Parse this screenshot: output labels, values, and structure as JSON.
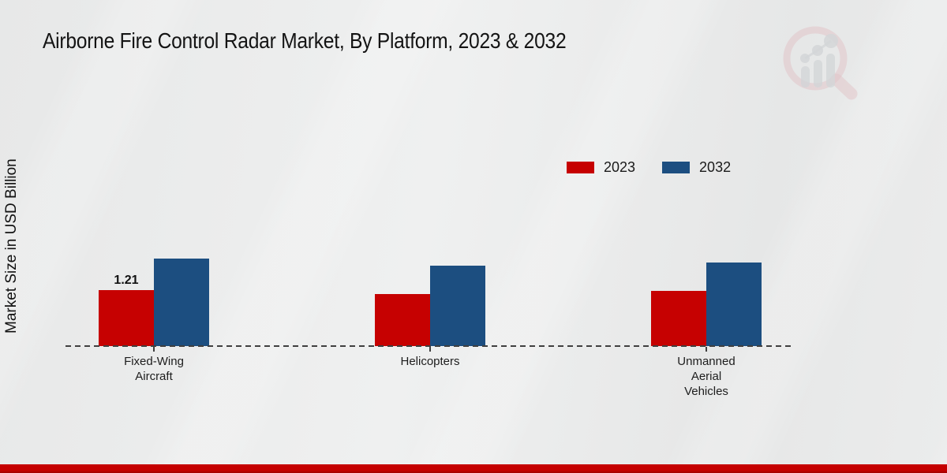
{
  "page": {
    "title": "Airborne Fire Control Radar Market, By Platform, 2023 & 2032",
    "y_axis_label": "Market Size in USD Billion"
  },
  "colors": {
    "series_2023": "#c60101",
    "series_2032": "#1c4e80",
    "footer_accent": "#c50000",
    "background": "#e9eaea",
    "baseline": "#3f3f3f"
  },
  "watermark": {
    "icon": "magnifier-bar-chart-logo"
  },
  "chart_data": {
    "type": "bar",
    "title": "Airborne Fire Control Radar Market, By Platform, 2023 & 2032",
    "xlabel": "",
    "ylabel": "Market Size in USD Billion",
    "unit": "USD Billion",
    "categories": [
      "Fixed-Wing Aircraft",
      "Helicopters",
      "Unmanned Aerial Vehicles"
    ],
    "series": [
      {
        "name": "2023",
        "color": "#c60101",
        "values": [
          1.21,
          1.12,
          1.19
        ],
        "labels": [
          "1.21",
          null,
          null
        ]
      },
      {
        "name": "2032",
        "color": "#1c4e80",
        "values": [
          1.89,
          1.74,
          1.81
        ],
        "labels": [
          null,
          null,
          null
        ]
      }
    ],
    "ylim": [
      0,
      2.5
    ],
    "grid": false,
    "axis_style": "dashed-baseline-only",
    "legend_position": "top-right"
  }
}
